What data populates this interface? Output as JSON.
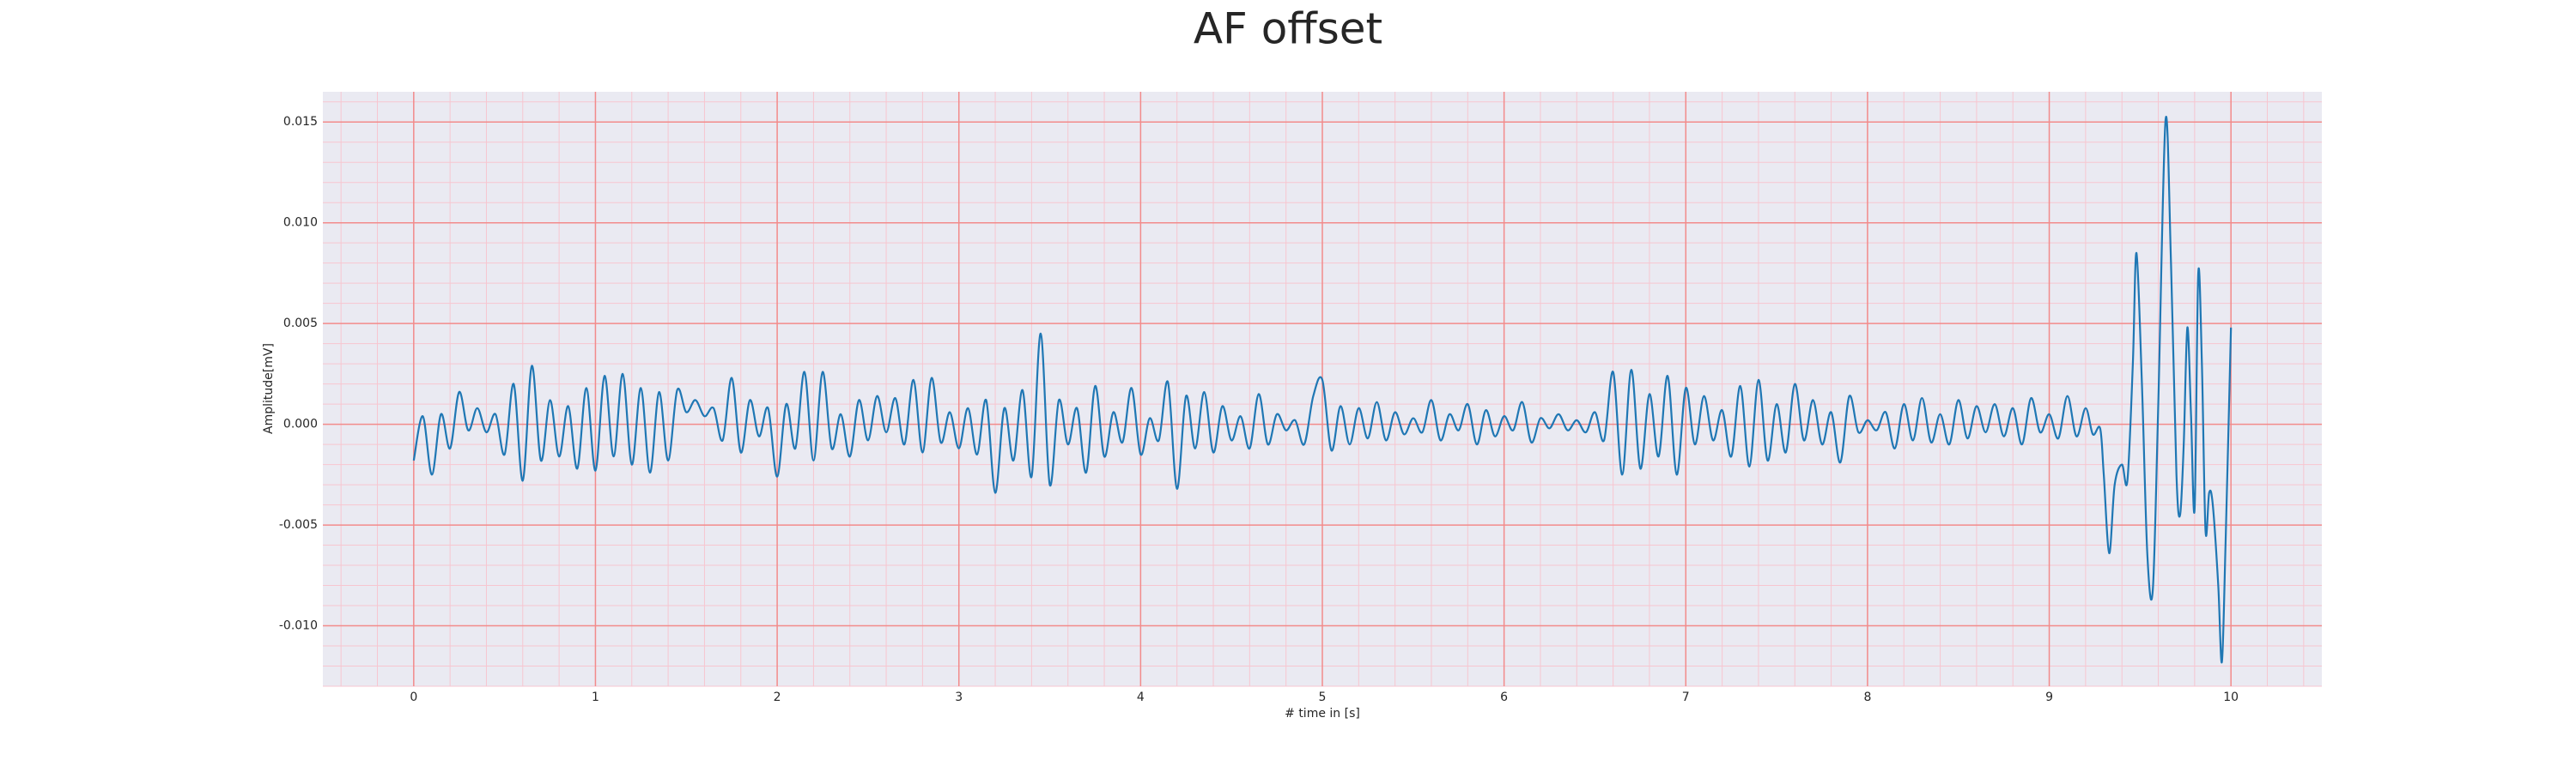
{
  "chart_data": {
    "type": "line",
    "title": "AF offset",
    "xlabel": "# time in [s]",
    "ylabel": "Amplitude[mV]",
    "xlim": [
      -0.5,
      10.5
    ],
    "ylim": [
      -0.013,
      0.0165
    ],
    "xticks": [
      0,
      1,
      2,
      3,
      4,
      5,
      6,
      7,
      8,
      9,
      10
    ],
    "yticks": [
      {
        "value": -0.01,
        "label": "-0.010"
      },
      {
        "value": -0.005,
        "label": "-0.005"
      },
      {
        "value": 0,
        "label": "0.000"
      },
      {
        "value": 0.005,
        "label": "0.005"
      },
      {
        "value": 0.01,
        "label": "0.010"
      },
      {
        "value": 0.015,
        "label": "0.015"
      }
    ],
    "grid": true,
    "minor_grid": true,
    "xminor_step": 0.2,
    "yminor_step": 0.001,
    "background": "#eaeaf2",
    "major_grid_color": "#f28b8b",
    "minor_grid_color": "#f7c6d0",
    "series": [
      {
        "color": "#1f77b4",
        "x": [
          0,
          0.05,
          0.1,
          0.15,
          0.2,
          0.25,
          0.3,
          0.35,
          0.4,
          0.45,
          0.5,
          0.55,
          0.6,
          0.65,
          0.7,
          0.75,
          0.8,
          0.85,
          0.9,
          0.95,
          1,
          1.05,
          1.1,
          1.15,
          1.2,
          1.25,
          1.3,
          1.35,
          1.4,
          1.45,
          1.5,
          1.55,
          1.6,
          1.65,
          1.7,
          1.75,
          1.8,
          1.85,
          1.9,
          1.95,
          2,
          2.05,
          2.1,
          2.15,
          2.2,
          2.25,
          2.3,
          2.35,
          2.4,
          2.45,
          2.5,
          2.55,
          2.6,
          2.65,
          2.7,
          2.75,
          2.8,
          2.85,
          2.9,
          2.95,
          3,
          3.05,
          3.1,
          3.15,
          3.2,
          3.25,
          3.3,
          3.35,
          3.4,
          3.45,
          3.5,
          3.55,
          3.6,
          3.65,
          3.7,
          3.75,
          3.8,
          3.85,
          3.9,
          3.95,
          4,
          4.05,
          4.1,
          4.15,
          4.2,
          4.25,
          4.3,
          4.35,
          4.4,
          4.45,
          4.5,
          4.55,
          4.6,
          4.65,
          4.7,
          4.75,
          4.8,
          4.85,
          4.9,
          4.95,
          5,
          5.05,
          5.1,
          5.15,
          5.2,
          5.25,
          5.3,
          5.35,
          5.4,
          5.45,
          5.5,
          5.55,
          5.6,
          5.65,
          5.7,
          5.75,
          5.8,
          5.85,
          5.9,
          5.95,
          6,
          6.05,
          6.1,
          6.15,
          6.2,
          6.25,
          6.3,
          6.35,
          6.4,
          6.45,
          6.5,
          6.55,
          6.6,
          6.65,
          6.7,
          6.75,
          6.8,
          6.85,
          6.9,
          6.95,
          7,
          7.05,
          7.1,
          7.15,
          7.2,
          7.25,
          7.3,
          7.35,
          7.4,
          7.45,
          7.5,
          7.55,
          7.6,
          7.65,
          7.7,
          7.75,
          7.8,
          7.85,
          7.9,
          7.95,
          8,
          8.05,
          8.1,
          8.15,
          8.2,
          8.25,
          8.3,
          8.35,
          8.4,
          8.45,
          8.5,
          8.55,
          8.6,
          8.65,
          8.7,
          8.75,
          8.8,
          8.85,
          8.9,
          8.95,
          9,
          9.05,
          9.1,
          9.15,
          9.2,
          9.24,
          9.28,
          9.3,
          9.33,
          9.36,
          9.4,
          9.43,
          9.46,
          9.48,
          9.51,
          9.54,
          9.57,
          9.6,
          9.64,
          9.67,
          9.7,
          9.72,
          9.74,
          9.76,
          9.78,
          9.8,
          9.82,
          9.84,
          9.86,
          9.88,
          9.9,
          9.93,
          9.95,
          9.97,
          10
        ],
        "values": [
          -0.0018,
          0.0004,
          -0.0025,
          0.0005,
          -0.0012,
          0.0016,
          -0.0003,
          0.0008,
          -0.0004,
          0.0005,
          -0.0015,
          0.002,
          -0.0028,
          0.0029,
          -0.0018,
          0.0012,
          -0.0016,
          0.0009,
          -0.0022,
          0.0018,
          -0.0023,
          0.0024,
          -0.0016,
          0.0025,
          -0.002,
          0.0018,
          -0.0024,
          0.0016,
          -0.0018,
          0.0017,
          0.0006,
          0.0012,
          0.0004,
          0.0008,
          -0.0008,
          0.0023,
          -0.0014,
          0.0012,
          -0.0006,
          0.0008,
          -0.0026,
          0.001,
          -0.0012,
          0.0026,
          -0.0018,
          0.0026,
          -0.0012,
          0.0005,
          -0.0016,
          0.0012,
          -0.0008,
          0.0014,
          -0.0004,
          0.0013,
          -0.001,
          0.0022,
          -0.0014,
          0.0023,
          -0.0009,
          0.0006,
          -0.0012,
          0.0008,
          -0.0015,
          0.0012,
          -0.0034,
          0.0008,
          -0.0018,
          0.0017,
          -0.0026,
          0.0045,
          -0.003,
          0.0012,
          -0.001,
          0.0008,
          -0.0024,
          0.0019,
          -0.0016,
          0.0006,
          -0.0009,
          0.0018,
          -0.0015,
          0.0003,
          -0.0008,
          0.0021,
          -0.0032,
          0.0014,
          -0.0012,
          0.0016,
          -0.0014,
          0.0009,
          -0.0008,
          0.0004,
          -0.0012,
          0.0015,
          -0.001,
          0.0005,
          -0.0003,
          0.0002,
          -0.001,
          0.0014,
          0.0022,
          -0.0013,
          0.0009,
          -0.001,
          0.0008,
          -0.0007,
          0.0011,
          -0.0008,
          0.0006,
          -0.0005,
          0.0003,
          -0.0004,
          0.0012,
          -0.0008,
          0.0005,
          -0.0003,
          0.001,
          -0.001,
          0.0007,
          -0.0006,
          0.0004,
          -0.0003,
          0.0011,
          -0.0009,
          0.0003,
          -0.0002,
          0.0005,
          -0.0003,
          0.0002,
          -0.0004,
          0.0006,
          -0.0008,
          0.0026,
          -0.0025,
          0.0027,
          -0.0022,
          0.0015,
          -0.0016,
          0.0024,
          -0.0025,
          0.0018,
          -0.001,
          0.0014,
          -0.0008,
          0.0007,
          -0.0016,
          0.0019,
          -0.0021,
          0.0022,
          -0.0018,
          0.001,
          -0.0014,
          0.002,
          -0.0008,
          0.0012,
          -0.001,
          0.0006,
          -0.0019,
          0.0014,
          -0.0004,
          0.0002,
          -0.0003,
          0.0006,
          -0.0012,
          0.001,
          -0.0008,
          0.0013,
          -0.0009,
          0.0005,
          -0.001,
          0.0012,
          -0.0007,
          0.0009,
          -0.0004,
          0.001,
          -0.0006,
          0.0008,
          -0.001,
          0.0013,
          -0.0004,
          0.0005,
          -0.0007,
          0.0014,
          -0.0006,
          0.0008,
          -0.0005,
          -0.0002,
          -0.0025,
          -0.0064,
          -0.003,
          -0.002,
          -0.0028,
          0.003,
          0.0085,
          0.002,
          -0.0065,
          -0.0082,
          0.001,
          0.0151,
          0.008,
          -0.0025,
          -0.0045,
          -0.001,
          0.0048,
          0.0005,
          -0.0042,
          0.0075,
          0.003,
          -0.0053,
          -0.0034,
          -0.004,
          -0.008,
          -0.0118,
          -0.006,
          0.0048
        ]
      }
    ]
  }
}
